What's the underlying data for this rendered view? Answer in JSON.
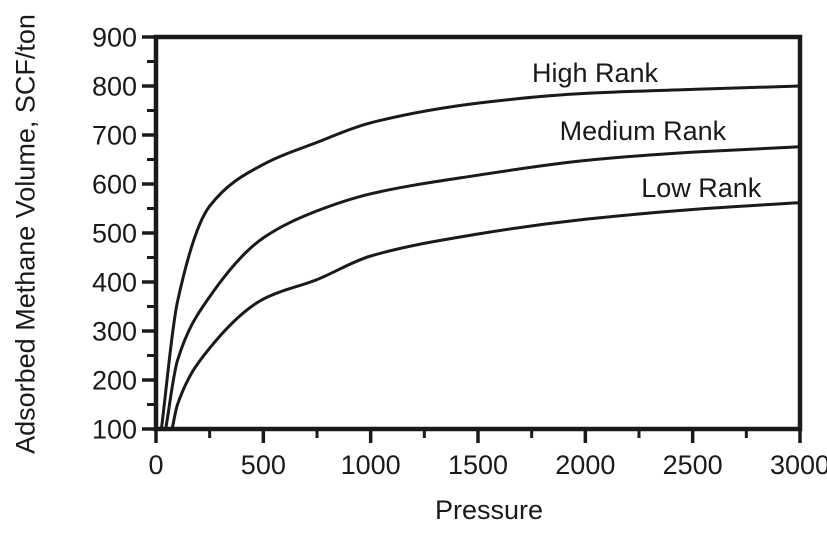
{
  "page": {
    "background": "#ffffff",
    "text_color": "#1a1a1a"
  },
  "chart_data": {
    "type": "line",
    "title": "",
    "xlabel": "Pressure",
    "ylabel": "Adsorbed Methane Volume, SCF/ton",
    "xlim": [
      0,
      3000
    ],
    "ylim": [
      100,
      900
    ],
    "x_major_ticks": [
      0,
      500,
      1000,
      1500,
      2000,
      2500,
      3000
    ],
    "x_minor_ticks": [
      250,
      750,
      1250,
      1750,
      2250,
      2750
    ],
    "y_major_ticks": [
      100,
      200,
      300,
      400,
      500,
      600,
      700,
      800,
      900
    ],
    "y_minor_ticks": [
      150,
      250,
      350,
      450,
      550,
      650,
      750,
      850
    ],
    "grid": false,
    "frame": "box",
    "legend": "inline-labels",
    "line_color": "#1a1a1a",
    "series": [
      {
        "name": "High Rank",
        "x": [
          25,
          100,
          250,
          500,
          750,
          1000,
          1500,
          2000,
          2500,
          3000
        ],
        "y": [
          100,
          360,
          555,
          640,
          685,
          725,
          765,
          785,
          793,
          800
        ],
        "label_pos": {
          "x": 2045,
          "y": 827
        }
      },
      {
        "name": "Medium Rank",
        "x": [
          45,
          100,
          250,
          500,
          750,
          1000,
          1500,
          2000,
          2500,
          3000
        ],
        "y": [
          100,
          240,
          370,
          490,
          545,
          580,
          618,
          648,
          665,
          676
        ],
        "label_pos": {
          "x": 2268,
          "y": 708
        }
      },
      {
        "name": "Low Rank",
        "x": [
          75,
          100,
          250,
          500,
          750,
          1000,
          1500,
          2000,
          2500,
          3000
        ],
        "y": [
          100,
          150,
          265,
          365,
          405,
          453,
          498,
          528,
          548,
          562
        ],
        "label_pos": {
          "x": 2540,
          "y": 592
        }
      }
    ]
  }
}
